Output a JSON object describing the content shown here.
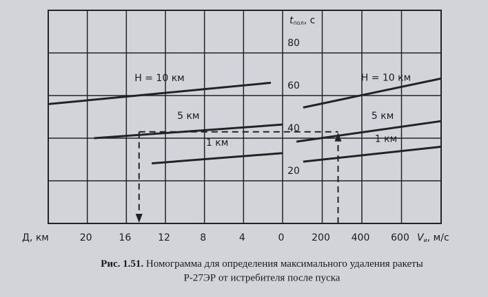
{
  "chart_data": [
    {
      "type": "line",
      "x_label": "Д, км",
      "y_label": {
        "symbol": "t",
        "subscript": "пол",
        "unit": ", с"
      },
      "xlim": [
        24,
        0
      ],
      "xticks": [
        20,
        16,
        12,
        8,
        4,
        0
      ],
      "ylim": [
        0,
        100
      ],
      "yticks": [
        20,
        40,
        60,
        80
      ],
      "grid": true,
      "color": "#222222",
      "series": [
        {
          "name": "H = 10 км",
          "x": [
            24,
            1.2
          ],
          "values": [
            56,
            66
          ]
        },
        {
          "name": "5 км",
          "x": [
            19.3,
            0
          ],
          "values": [
            40,
            46.4
          ]
        },
        {
          "name": "1 км",
          "x": [
            13.4,
            0
          ],
          "values": [
            28.2,
            33
          ]
        }
      ],
      "example": {
        "x": 14.7,
        "t": 43
      }
    },
    {
      "type": "line",
      "x_label": {
        "symbol": "V",
        "subscript": "и",
        "unit": ", м/с"
      },
      "xlim": [
        0,
        800
      ],
      "xticks": [
        200,
        400,
        600
      ],
      "ylim": [
        0,
        100
      ],
      "grid": true,
      "color": "#222222",
      "series": [
        {
          "name": "H = 10 км",
          "x": [
            104,
            800
          ],
          "values": [
            54.4,
            68
          ]
        },
        {
          "name": "5 км",
          "x": [
            70,
            800
          ],
          "values": [
            38.4,
            48
          ]
        },
        {
          "name": "1 км",
          "x": [
            104,
            800
          ],
          "values": [
            29,
            36
          ]
        }
      ],
      "example": {
        "x": 280,
        "t": 43
      }
    }
  ],
  "caption": {
    "number": "Рис. 1.51.",
    "line1": "Номограмма для определения максимального удаления ракеты",
    "line2": "Р-27ЭР от истребителя после пуска"
  }
}
